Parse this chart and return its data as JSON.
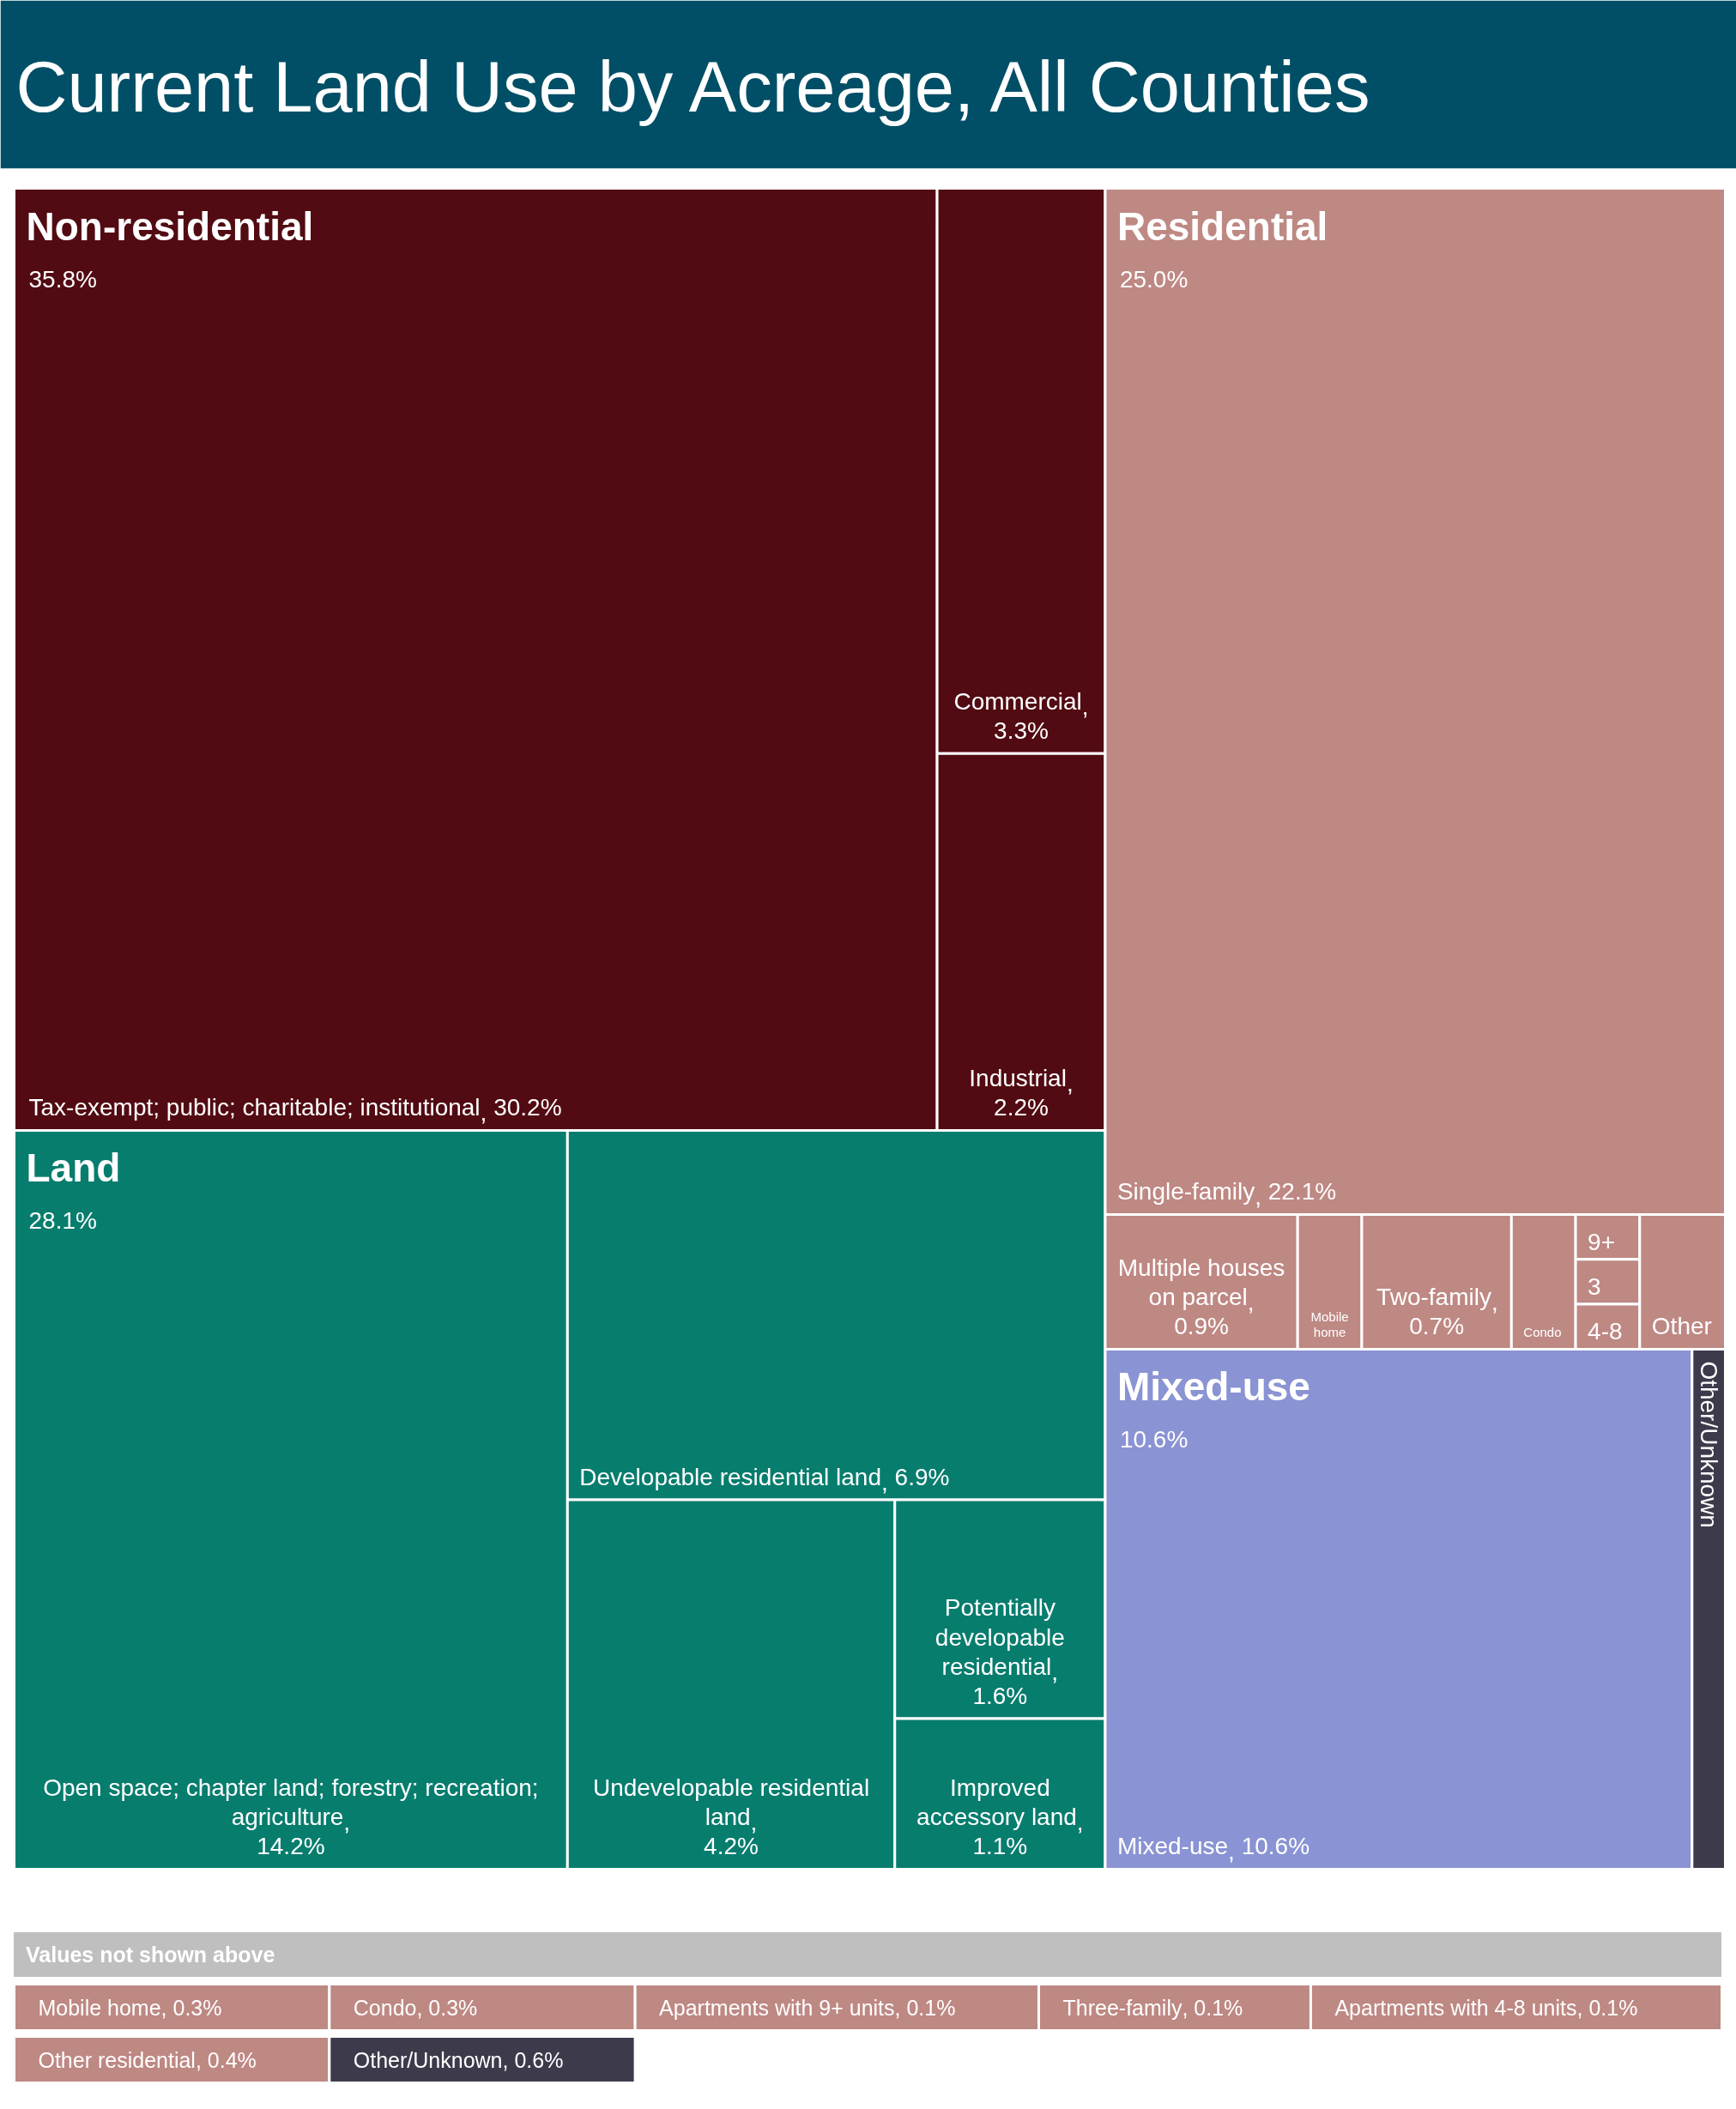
{
  "chart_data": [
    {
      "type": "other",
      "title": "Current Land Use by Acreage, All Counties",
      "categories": [
        "Tax-exempt; public; charitable; institutional",
        "Commercial",
        "Industrial",
        "Open space; chapter land; forestry; recreation; agriculture",
        "Developable residential land",
        "Undevelopable residential land",
        "Potentially developable residential",
        "Improved accessory land",
        "Single-family",
        "Multiple houses on parcel",
        "Mobile home",
        "Two-family",
        "Condo",
        "9+",
        "3",
        "4-8",
        "Other",
        "Mixed-use",
        "Other/Unknown"
      ],
      "values": [
        30.2,
        3.3,
        2.2,
        14.2,
        6.9,
        4.2,
        1.6,
        1.1,
        22.1,
        0.9,
        null,
        0.7,
        null,
        null,
        null,
        null,
        null,
        10.6,
        null
      ],
      "value_labels": [
        "30.2%",
        "3.3%",
        "2.2%",
        "14.2%",
        "6.9%",
        "4.2%",
        "1.6%",
        "1.1%",
        "22.1%",
        "0.9%",
        null,
        "0.7%",
        null,
        null,
        null,
        null,
        null,
        "10.6%",
        null
      ],
      "colors": [
        "#520b12",
        "#520b12",
        "#520b12",
        "#077d6e",
        "#077d6e",
        "#077d6e",
        "#077d6e",
        "#077d6e",
        "#be8883",
        "#be8883",
        "#be8883",
        "#be8883",
        "#be8883",
        "#be8883",
        "#be8883",
        "#be8883",
        "#be8883",
        "#8a93d3",
        "#3d3b4b"
      ],
      "annotations": [
        "Non-residential",
        "35.8%",
        "Land",
        "28.1%",
        "Residential",
        "25.0%",
        "Mixed-use",
        "10.6%",
        ","
      ]
    },
    {
      "type": "other",
      "title": "Values not shown above",
      "categories": [
        "Mobile home",
        "Condo",
        "Apartments with 9+ units",
        "Three-family",
        "Apartments with 4-8 units",
        "Other residential",
        "Other/Unknown"
      ],
      "values": [
        0.3,
        0.3,
        0.1,
        0.1,
        0.1,
        0.4,
        0.6
      ],
      "value_labels": [
        "0.3%",
        "0.3%",
        "0.1%",
        "0.1%",
        "0.1%",
        "0.4%",
        "0.6%"
      ],
      "colors": [
        "#be8883",
        "#be8883",
        "#be8883",
        "#be8883",
        "#be8883",
        "#be8883",
        "#3d3b4b"
      ],
      "annotations": [
        ","
      ]
    }
  ]
}
